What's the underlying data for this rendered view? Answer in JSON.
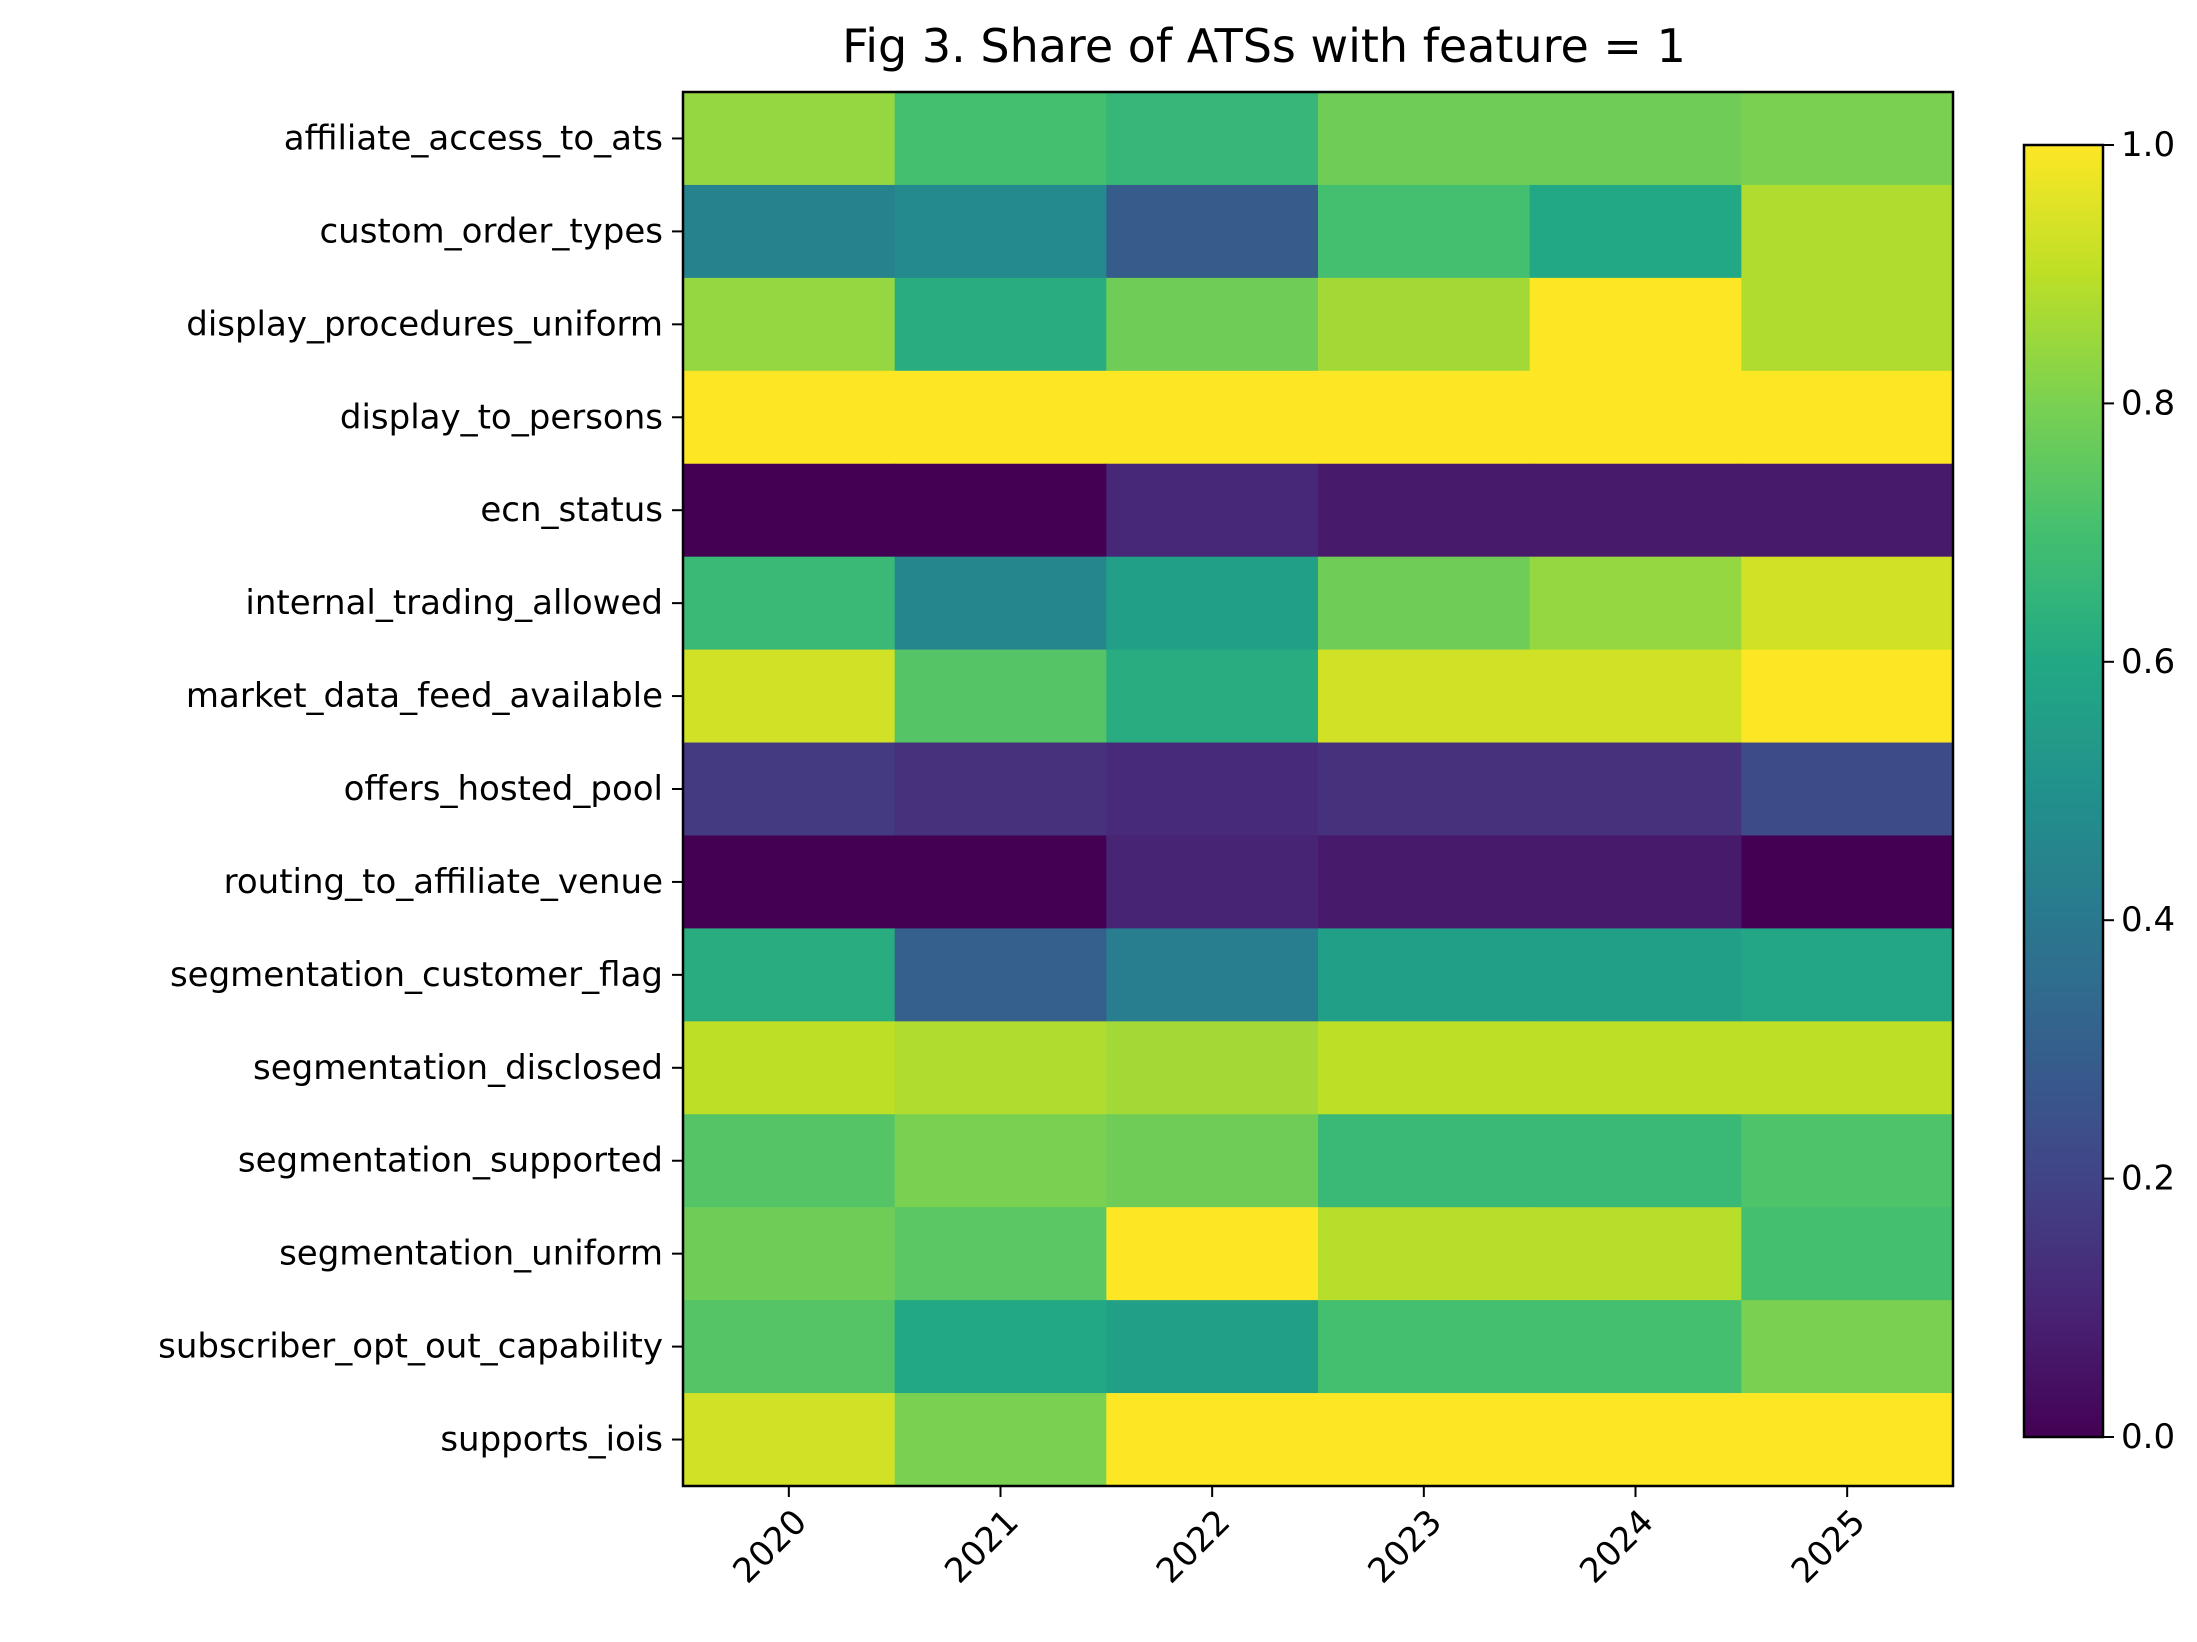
{
  "chart_data": {
    "type": "heatmap",
    "title": "Fig 3. Share of ATSs with feature = 1",
    "xlabel": "",
    "ylabel": "",
    "colormap": "viridis",
    "colorbar": {
      "range": [
        0.0,
        1.0
      ],
      "ticks": [
        "0.0",
        "0.2",
        "0.4",
        "0.6",
        "0.8",
        "1.0"
      ]
    },
    "x": [
      "2020",
      "2021",
      "2022",
      "2023",
      "2024",
      "2025"
    ],
    "y": [
      "affiliate_access_to_ats",
      "custom_order_types",
      "display_procedures_uniform",
      "display_to_persons",
      "ecn_status",
      "internal_trading_allowed",
      "market_data_feed_available",
      "offers_hosted_pool",
      "routing_to_affiliate_venue",
      "segmentation_customer_flag",
      "segmentation_disclosed",
      "segmentation_supported",
      "segmentation_uniform",
      "subscriber_opt_out_capability",
      "supports_iois"
    ],
    "values": [
      [
        0.84,
        0.7,
        0.66,
        0.78,
        0.78,
        0.8
      ],
      [
        0.44,
        0.47,
        0.29,
        0.7,
        0.6,
        0.88
      ],
      [
        0.84,
        0.62,
        0.78,
        0.86,
        1.0,
        0.88
      ],
      [
        1.0,
        1.0,
        1.0,
        1.0,
        1.0,
        1.0
      ],
      [
        0.0,
        0.0,
        0.11,
        0.07,
        0.07,
        0.07
      ],
      [
        0.67,
        0.46,
        0.56,
        0.78,
        0.84,
        0.93
      ],
      [
        0.93,
        0.73,
        0.62,
        0.93,
        0.93,
        1.0
      ],
      [
        0.17,
        0.14,
        0.12,
        0.14,
        0.14,
        0.23
      ],
      [
        0.0,
        0.0,
        0.1,
        0.07,
        0.07,
        0.0
      ],
      [
        0.62,
        0.3,
        0.42,
        0.56,
        0.56,
        0.59
      ],
      [
        0.9,
        0.88,
        0.86,
        0.9,
        0.9,
        0.9
      ],
      [
        0.73,
        0.8,
        0.78,
        0.67,
        0.67,
        0.72
      ],
      [
        0.78,
        0.74,
        1.0,
        0.89,
        0.89,
        0.7
      ],
      [
        0.73,
        0.6,
        0.56,
        0.7,
        0.7,
        0.8
      ],
      [
        0.93,
        0.8,
        1.0,
        1.0,
        1.0,
        1.0
      ]
    ]
  }
}
